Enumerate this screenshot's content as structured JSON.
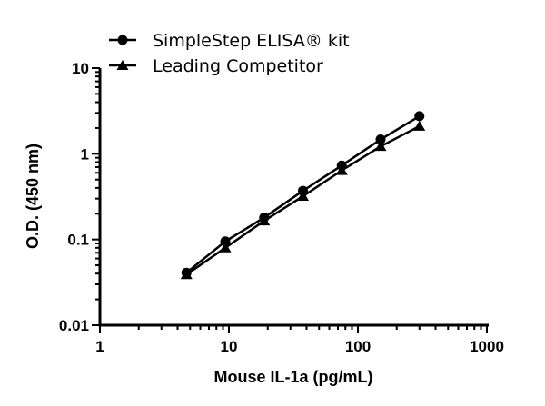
{
  "chart_data": {
    "type": "line",
    "title": "",
    "xlabel": "Mouse IL-1a (pg/mL)",
    "ylabel": "O.D. (450 nm)",
    "x_scale": "log",
    "y_scale": "log",
    "xlim": [
      1,
      1000
    ],
    "ylim": [
      0.01,
      10
    ],
    "x_ticks": [
      "1",
      "10",
      "100",
      "1000"
    ],
    "y_ticks": [
      "0.01",
      "0.1",
      "1",
      "10"
    ],
    "grid": false,
    "legend_position": "top",
    "x": [
      4.69,
      9.38,
      18.75,
      37.5,
      75,
      150,
      300
    ],
    "series": [
      {
        "name": "SimpleStep ELISA® kit",
        "marker": "circle",
        "color": "#000000",
        "values": [
          0.041,
          0.095,
          0.18,
          0.37,
          0.73,
          1.47,
          2.75
        ]
      },
      {
        "name": "Leading Competitor",
        "marker": "triangle",
        "color": "#000000",
        "values": [
          0.039,
          0.08,
          0.165,
          0.32,
          0.64,
          1.22,
          2.1
        ]
      }
    ]
  }
}
